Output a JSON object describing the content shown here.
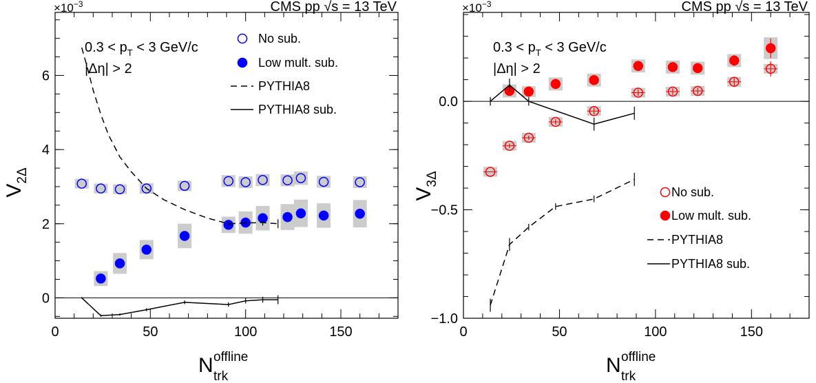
{
  "chart_data": [
    {
      "type": "scatter",
      "panel": "left",
      "title": "CMS pp √s = 13 TeV",
      "sqrt_glyph": "√",
      "sqrt_arg": "s",
      "title_prefix": "CMS pp",
      "title_suffix": "= 13 TeV",
      "multiplier_label": "×10",
      "multiplier_exp": "−3",
      "ylabel_main": "V",
      "ylabel_sub": "2Δ",
      "xlabel_main": "N",
      "xlabel_sup": "offline",
      "xlabel_sub": "trk",
      "xlim": [
        0,
        180
      ],
      "ylim": [
        -0.55,
        7.7
      ],
      "xticks": [
        0,
        50,
        100,
        150
      ],
      "xtick_labels": [
        "0",
        "50",
        "100",
        "150"
      ],
      "yticks": [
        0,
        2,
        4,
        6
      ],
      "ytick_labels": [
        "0",
        "2",
        "4",
        "6"
      ],
      "cut1_prefix": "0.3 < p",
      "cut1_sub": "T",
      "cut1_suffix": " < 3 GeV/c",
      "cut2": "|Δη| > 2",
      "legend": [
        "No sub.",
        "Low mult. sub.",
        "PYTHIA8",
        "PYTHIA8 sub."
      ],
      "legend_position": "top-right",
      "color": "#0000ff",
      "syst_color": "#cccccc",
      "series": [
        {
          "name": "No sub.",
          "marker": "open-circle",
          "x": [
            14,
            24,
            34,
            48,
            68,
            91,
            100,
            109,
            122,
            129,
            141,
            160
          ],
          "y": [
            3.08,
            2.95,
            2.93,
            2.95,
            3.02,
            3.15,
            3.12,
            3.18,
            3.17,
            3.23,
            3.13,
            3.12
          ],
          "syst": [
            0.12,
            0.12,
            0.12,
            0.14,
            0.14,
            0.16,
            0.16,
            0.16,
            0.16,
            0.18,
            0.16,
            0.16
          ]
        },
        {
          "name": "Low mult. sub.",
          "marker": "filled-circle",
          "x": [
            24,
            34,
            48,
            68,
            91,
            100,
            109,
            122,
            129,
            141,
            160
          ],
          "y": [
            0.52,
            0.93,
            1.3,
            1.67,
            1.97,
            2.03,
            2.15,
            2.18,
            2.28,
            2.22,
            2.27
          ],
          "syst": [
            0.2,
            0.28,
            0.26,
            0.33,
            0.22,
            0.3,
            0.33,
            0.35,
            0.37,
            0.33,
            0.37
          ]
        },
        {
          "name": "PYTHIA8",
          "style": "dashed",
          "x": [
            14,
            17,
            20,
            24,
            28,
            34,
            40,
            48,
            57,
            68,
            80,
            91,
            100,
            109,
            117
          ],
          "y": [
            6.75,
            6.2,
            5.6,
            4.95,
            4.4,
            3.8,
            3.4,
            2.95,
            2.65,
            2.38,
            2.15,
            2.0,
            2.02,
            2.03,
            2.0
          ],
          "err": [
            0,
            0,
            0,
            0,
            0,
            0,
            0,
            0,
            0,
            0,
            0,
            0.05,
            0.06,
            0.08,
            0.12
          ]
        },
        {
          "name": "PYTHIA8 sub.",
          "style": "solid",
          "x": [
            14,
            24,
            34,
            48,
            68,
            91,
            100,
            109,
            117
          ],
          "y": [
            0.0,
            -0.48,
            -0.45,
            -0.32,
            -0.12,
            -0.18,
            -0.08,
            -0.05,
            -0.05
          ],
          "err": [
            0.02,
            0.03,
            0.03,
            0.04,
            0.05,
            0.06,
            0.07,
            0.08,
            0.12
          ]
        }
      ]
    },
    {
      "type": "scatter",
      "panel": "right",
      "title": "CMS pp √s = 13 TeV",
      "sqrt_glyph": "√",
      "sqrt_arg": "s",
      "title_prefix": "CMS pp",
      "title_suffix": "= 13 TeV",
      "multiplier_label": "×10",
      "multiplier_exp": "−3",
      "ylabel_main": "V",
      "ylabel_sub": "3Δ",
      "xlabel_main": "N",
      "xlabel_sup": "offline",
      "xlabel_sub": "trk",
      "xlim": [
        0,
        180
      ],
      "ylim": [
        -1.0,
        0.41
      ],
      "xticks": [
        0,
        50,
        100,
        150
      ],
      "xtick_labels": [
        "0",
        "50",
        "100",
        "150"
      ],
      "yticks": [
        -1.0,
        -0.5,
        0.0
      ],
      "ytick_labels": [
        "−1.0",
        "−0.5",
        "0.0"
      ],
      "cut1_prefix": "0.3 < p",
      "cut1_sub": "T",
      "cut1_suffix": " < 3 GeV/c",
      "cut2": "|Δη| > 2",
      "legend": [
        "No sub.",
        "Low mult. sub.",
        "PYTHIA8",
        "PYTHIA8 sub."
      ],
      "legend_position": "bottom-right",
      "color": "#ff0000",
      "syst_color": "#cccccc",
      "series": [
        {
          "name": "No sub.",
          "marker": "open-circle",
          "x": [
            14,
            24,
            34,
            48,
            68,
            91,
            109,
            122,
            141,
            160
          ],
          "y": [
            -0.325,
            -0.205,
            -0.168,
            -0.095,
            -0.045,
            0.04,
            0.045,
            0.048,
            0.09,
            0.15
          ],
          "err": [
            0,
            0.01,
            0.01,
            0.012,
            0.015,
            0.015,
            0.015,
            0.015,
            0.02,
            0.035
          ],
          "syst": [
            0.01,
            0.01,
            0.01,
            0.01,
            0.01,
            0.01,
            0.01,
            0.01,
            0.01,
            0.01
          ]
        },
        {
          "name": "Low mult. sub.",
          "marker": "filled-circle",
          "x": [
            24,
            34,
            48,
            68,
            91,
            109,
            122,
            141,
            160
          ],
          "y": [
            0.048,
            0.045,
            0.08,
            0.098,
            0.163,
            0.158,
            0.153,
            0.188,
            0.245
          ],
          "err": [
            0.01,
            0.01,
            0.012,
            0.012,
            0.015,
            0.015,
            0.015,
            0.025,
            0.045
          ],
          "syst": [
            0.03,
            0.025,
            0.03,
            0.03,
            0.03,
            0.03,
            0.03,
            0.03,
            0.05
          ]
        },
        {
          "name": "PYTHIA8",
          "style": "dashed",
          "x": [
            14,
            24,
            34,
            48,
            68,
            89
          ],
          "y": [
            -0.94,
            -0.66,
            -0.58,
            -0.485,
            -0.45,
            -0.36
          ],
          "err": [
            0.03,
            0.03,
            0.015,
            0.015,
            0.015,
            0.03
          ]
        },
        {
          "name": "PYTHIA8 sub.",
          "style": "solid",
          "x": [
            14,
            24,
            34,
            68,
            89
          ],
          "y": [
            0.0,
            0.075,
            0.0,
            -0.105,
            -0.055
          ],
          "err": [
            0.02,
            0.03,
            0.02,
            0.03,
            0.03
          ]
        }
      ]
    }
  ]
}
